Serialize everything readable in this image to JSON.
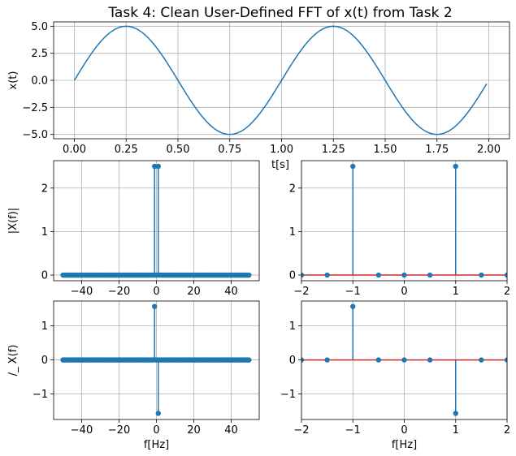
{
  "colors": {
    "line": "#1f77b4",
    "baseline": "#d62728",
    "grid": "#b0b0b0"
  },
  "chart_data": [
    {
      "id": "top",
      "type": "line",
      "title": "Task 4: Clean User-Defined FFT of x(t) from Task 2",
      "xlabel": "t[s]",
      "ylabel": "x(t)",
      "xlim": [
        -0.1,
        2.1
      ],
      "ylim": [
        -5.4,
        5.4
      ],
      "xticks": [
        0.0,
        0.25,
        0.5,
        0.75,
        1.0,
        1.25,
        1.5,
        1.75,
        2.0
      ],
      "xtick_labels": [
        "0.00",
        "0.25",
        "0.50",
        "0.75",
        "1.00",
        "1.25",
        "1.50",
        "1.75",
        "2.00"
      ],
      "yticks": [
        5.0,
        2.5,
        0.0,
        -2.5,
        -5.0
      ],
      "ytick_labels": [
        "5.0",
        "2.5",
        "0.0",
        "−2.5",
        "−5.0"
      ],
      "grid": true,
      "series": [
        {
          "function": "5*sin(2*pi*1*t)",
          "t_start": 0,
          "t_end": 1.99,
          "t_step": 0.01
        }
      ]
    },
    {
      "id": "mag-full",
      "type": "stem",
      "xlabel": "",
      "ylabel": "|X(f)|",
      "xlim": [
        -55,
        55
      ],
      "ylim": [
        -0.13,
        2.63
      ],
      "xticks": [
        -40,
        -20,
        0,
        20,
        40
      ],
      "xtick_labels": [
        "−40",
        "−20",
        "0",
        "20",
        "40"
      ],
      "yticks": [
        0,
        1,
        2
      ],
      "ytick_labels": [
        "0",
        "1",
        "2"
      ],
      "grid": true,
      "stems": {
        "f_start": -50,
        "f_end": 49.5,
        "f_step": 0.5,
        "peaks": [
          [
            -1,
            2.5
          ],
          [
            1,
            2.5
          ]
        ],
        "default": 0
      }
    },
    {
      "id": "mag-zoom",
      "type": "stem",
      "xlabel": "",
      "ylabel": "",
      "xlim": [
        -2,
        2
      ],
      "ylim": [
        -0.13,
        2.63
      ],
      "xticks": [
        -2,
        -1,
        0,
        1,
        2
      ],
      "xtick_labels": [
        "−2",
        "−1",
        "0",
        "1",
        "2"
      ],
      "yticks": [
        0,
        1,
        2
      ],
      "ytick_labels": [
        "0",
        "1",
        "2"
      ],
      "grid": true,
      "stems": {
        "f_start": -50,
        "f_end": 49.5,
        "f_step": 0.5,
        "peaks": [
          [
            -1,
            2.5
          ],
          [
            1,
            2.5
          ]
        ],
        "default": 0
      }
    },
    {
      "id": "phase-full",
      "type": "stem",
      "xlabel": "f[Hz]",
      "ylabel": "/_ X(f)",
      "xlim": [
        -55,
        55
      ],
      "ylim": [
        -1.75,
        1.73
      ],
      "xticks": [
        -40,
        -20,
        0,
        20,
        40
      ],
      "xtick_labels": [
        "−40",
        "−20",
        "0",
        "20",
        "40"
      ],
      "yticks": [
        1,
        0,
        -1
      ],
      "ytick_labels": [
        "1",
        "0",
        "−1"
      ],
      "grid": true,
      "stems": {
        "f_start": -50,
        "f_end": 49.5,
        "f_step": 0.5,
        "peaks": [
          [
            -1,
            1.5708
          ],
          [
            1,
            -1.5708
          ]
        ],
        "default": 0
      }
    },
    {
      "id": "phase-zoom",
      "type": "stem",
      "xlabel": "f[Hz]",
      "ylabel": "",
      "xlim": [
        -2,
        2
      ],
      "ylim": [
        -1.75,
        1.73
      ],
      "xticks": [
        -2,
        -1,
        0,
        1,
        2
      ],
      "xtick_labels": [
        "−2",
        "−1",
        "0",
        "1",
        "2"
      ],
      "yticks": [
        1,
        0,
        -1
      ],
      "ytick_labels": [
        "1",
        "0",
        "−1"
      ],
      "grid": true,
      "stems": {
        "f_start": -50,
        "f_end": 49.5,
        "f_step": 0.5,
        "peaks": [
          [
            -1,
            1.5708
          ],
          [
            1,
            -1.5708
          ]
        ],
        "default": 0
      }
    }
  ]
}
